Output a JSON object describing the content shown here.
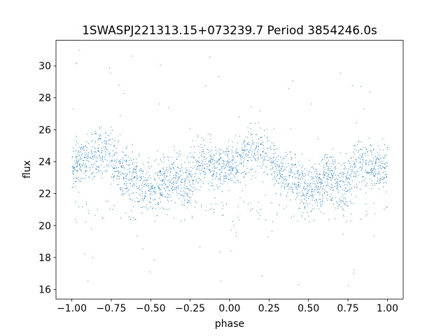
{
  "chart_data": {
    "type": "scatter",
    "title": "1SWASPJ221313.15+073239.7 Period 3854246.0s",
    "xlabel": "phase",
    "ylabel": "flux",
    "xlim": [
      -1.1,
      1.1
    ],
    "ylim": [
      15.4,
      31.6
    ],
    "xticks": [
      -1.0,
      -0.75,
      -0.5,
      -0.25,
      0.0,
      0.25,
      0.5,
      0.75,
      1.0
    ],
    "xtick_labels": [
      "−1.00",
      "−0.75",
      "−0.50",
      "−0.25",
      "0.00",
      "0.25",
      "0.50",
      "0.75",
      "1.00"
    ],
    "yticks": [
      16,
      18,
      20,
      22,
      24,
      26,
      28,
      30
    ],
    "ytick_labels": [
      "16",
      "18",
      "20",
      "22",
      "24",
      "26",
      "28",
      "30"
    ],
    "grid": false,
    "legend": "none",
    "marker_color": "#1f77b4",
    "series": [
      {
        "x": [
          -1.0,
          -0.95,
          -0.9,
          -0.85,
          -0.8,
          -0.75,
          -0.7,
          -0.65,
          -0.6,
          -0.55,
          -0.5,
          -0.45,
          -0.4,
          -0.35,
          -0.3,
          -0.25,
          -0.2,
          -0.15,
          -0.1,
          -0.05,
          0.0,
          0.05,
          0.1,
          0.15,
          0.2,
          0.25,
          0.3,
          0.35,
          0.4,
          0.45,
          0.5,
          0.55,
          0.6,
          0.65,
          0.7,
          0.75,
          0.8,
          0.85,
          0.9,
          0.95,
          1.0
        ],
        "y": [
          23.8,
          24.0,
          24.4,
          24.6,
          24.8,
          24.3,
          23.6,
          23.2,
          23.0,
          22.6,
          22.3,
          22.6,
          23.0,
          22.9,
          22.6,
          22.8,
          23.6,
          24.0,
          23.7,
          23.5,
          23.8,
          24.0,
          24.4,
          24.6,
          24.8,
          24.3,
          23.6,
          23.2,
          23.0,
          22.6,
          22.3,
          22.6,
          23.0,
          22.9,
          22.6,
          22.8,
          23.6,
          24.0,
          23.7,
          23.5,
          23.8
        ],
        "spread": [
          1.4,
          1.3,
          1.5,
          1.7,
          1.8,
          1.7,
          1.6,
          1.6,
          1.6,
          1.5,
          1.4,
          1.5,
          1.6,
          1.6,
          1.6,
          1.7,
          1.6,
          1.6,
          1.6,
          1.4,
          1.4,
          1.3,
          1.5,
          1.7,
          1.8,
          1.7,
          1.6,
          1.6,
          1.6,
          1.5,
          1.4,
          1.5,
          1.6,
          1.6,
          1.6,
          1.7,
          1.6,
          1.6,
          1.6,
          1.4,
          1.4
        ]
      }
    ]
  }
}
